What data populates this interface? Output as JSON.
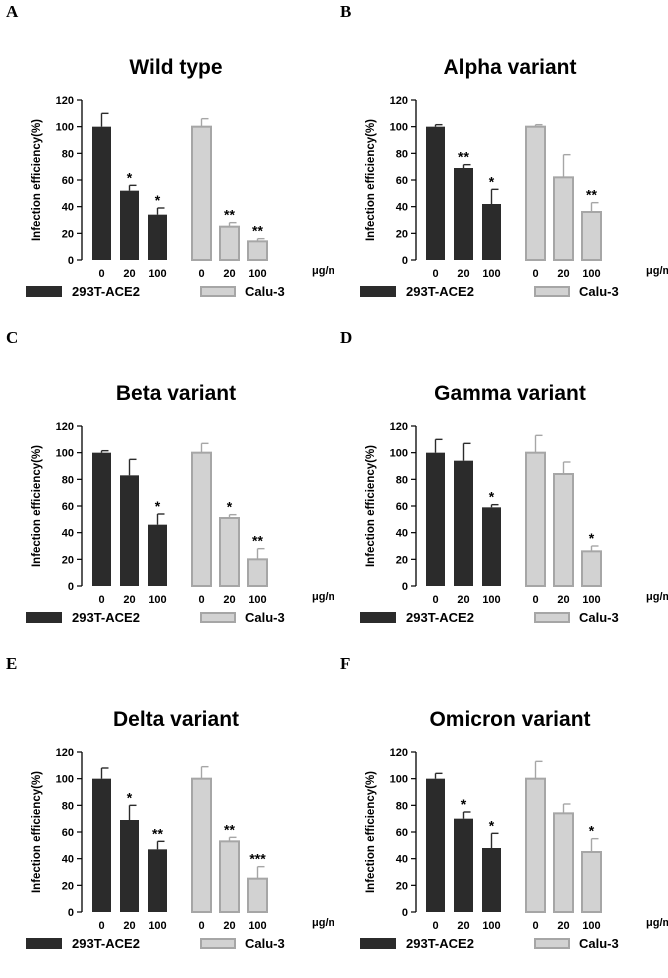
{
  "figure": {
    "colors": {
      "dark": "#2b2b2b",
      "light": "#d2d2d2",
      "light_edge": "#a6a6a6",
      "axis": "#000000"
    },
    "legend": [
      "293T-ACE2",
      "Calu-3"
    ],
    "unit_label": "μg/ml",
    "y_axis_label": "Infection efficiency(%)"
  },
  "chart_data": [
    {
      "type": "bar",
      "panel": "A",
      "title": "Wild type",
      "xlabel": "μg/ml",
      "ylabel": "Infection efficiency(%)",
      "ylim": [
        0,
        120
      ],
      "yticks": [
        "0",
        "20",
        "40",
        "60",
        "80",
        "100",
        "120"
      ],
      "categories": [
        "0",
        "20",
        "100"
      ],
      "series": [
        {
          "name": "293T-ACE2",
          "values": [
            100,
            52,
            34
          ],
          "errors": [
            10,
            4,
            5
          ],
          "sig": [
            "",
            "*",
            "*"
          ]
        },
        {
          "name": "Calu-3",
          "values": [
            100,
            25,
            14
          ],
          "errors": [
            6,
            3,
            2
          ],
          "sig": [
            "",
            "**",
            "**"
          ]
        }
      ]
    },
    {
      "type": "bar",
      "panel": "B",
      "title": "Alpha variant",
      "xlabel": "μg/ml",
      "ylabel": "Infection efficiency(%)",
      "ylim": [
        0,
        120
      ],
      "yticks": [
        "0",
        "20",
        "40",
        "60",
        "80",
        "100",
        "120"
      ],
      "categories": [
        "0",
        "20",
        "100"
      ],
      "series": [
        {
          "name": "293T-ACE2",
          "values": [
            100,
            69,
            42
          ],
          "errors": [
            1.5,
            2.5,
            11
          ],
          "sig": [
            "",
            "**",
            "*"
          ]
        },
        {
          "name": "Calu-3",
          "values": [
            100,
            62,
            36
          ],
          "errors": [
            1.5,
            17,
            7
          ],
          "sig": [
            "",
            "",
            "**"
          ]
        }
      ]
    },
    {
      "type": "bar",
      "panel": "C",
      "title": "Beta variant",
      "xlabel": "μg/ml",
      "ylabel": "Infection efficiency(%)",
      "ylim": [
        0,
        120
      ],
      "yticks": [
        "0",
        "20",
        "40",
        "60",
        "80",
        "100",
        "120"
      ],
      "categories": [
        "0",
        "20",
        "100"
      ],
      "series": [
        {
          "name": "293T-ACE2",
          "values": [
            100,
            83,
            46
          ],
          "errors": [
            1.5,
            12,
            8
          ],
          "sig": [
            "",
            "",
            "*"
          ]
        },
        {
          "name": "Calu-3",
          "values": [
            100,
            51,
            20
          ],
          "errors": [
            7,
            2.5,
            8
          ],
          "sig": [
            "",
            "*",
            "**"
          ]
        }
      ]
    },
    {
      "type": "bar",
      "panel": "D",
      "title": "Gamma variant",
      "xlabel": "μg/ml",
      "ylabel": "Infection efficiency(%)",
      "ylim": [
        0,
        120
      ],
      "yticks": [
        "0",
        "20",
        "40",
        "60",
        "80",
        "100",
        "120"
      ],
      "categories": [
        "0",
        "20",
        "100"
      ],
      "series": [
        {
          "name": "293T-ACE2",
          "values": [
            100,
            94,
            59
          ],
          "errors": [
            10,
            13,
            2
          ],
          "sig": [
            "",
            "",
            "*"
          ]
        },
        {
          "name": "Calu-3",
          "values": [
            100,
            84,
            26
          ],
          "errors": [
            13,
            9,
            4
          ],
          "sig": [
            "",
            "",
            "*"
          ]
        }
      ]
    },
    {
      "type": "bar",
      "panel": "E",
      "title": "Delta variant",
      "xlabel": "μg/ml",
      "ylabel": "Infection efficiency(%)",
      "ylim": [
        0,
        120
      ],
      "yticks": [
        "0",
        "20",
        "40",
        "60",
        "80",
        "100",
        "120"
      ],
      "categories": [
        "0",
        "20",
        "100"
      ],
      "series": [
        {
          "name": "293T-ACE2",
          "values": [
            100,
            69,
            47
          ],
          "errors": [
            8,
            11,
            6
          ],
          "sig": [
            "",
            "*",
            "**"
          ]
        },
        {
          "name": "Calu-3",
          "values": [
            100,
            53,
            25
          ],
          "errors": [
            9,
            3,
            9
          ],
          "sig": [
            "",
            "**",
            "***"
          ]
        }
      ]
    },
    {
      "type": "bar",
      "panel": "F",
      "title": "Omicron variant",
      "xlabel": "μg/ml",
      "ylabel": "Infection efficiency(%)",
      "ylim": [
        0,
        120
      ],
      "yticks": [
        "0",
        "20",
        "40",
        "60",
        "80",
        "100",
        "120"
      ],
      "categories": [
        "0",
        "20",
        "100"
      ],
      "series": [
        {
          "name": "293T-ACE2",
          "values": [
            100,
            70,
            48
          ],
          "errors": [
            4,
            5,
            11
          ],
          "sig": [
            "",
            "*",
            "*"
          ]
        },
        {
          "name": "Calu-3",
          "values": [
            100,
            74,
            45
          ],
          "errors": [
            13,
            7,
            10
          ],
          "sig": [
            "",
            "",
            "*"
          ]
        }
      ]
    }
  ]
}
